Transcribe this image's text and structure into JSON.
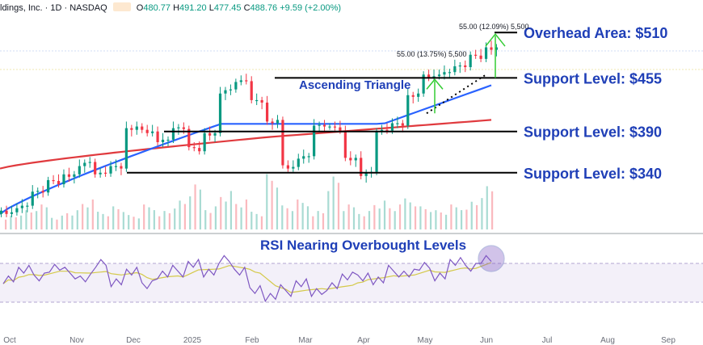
{
  "header": {
    "ticker": "ldings, Inc. · 1D · NASDAQ",
    "o_label": "O",
    "o": "480.77",
    "h_label": "H",
    "h": "491.20",
    "l_label": "L",
    "l": "477.45",
    "c_label": "C",
    "c": "488.76",
    "change": "+9.59 (+2.00%)"
  },
  "colors": {
    "up": "#089981",
    "down": "#f23645",
    "ma_fast": "#2962ff",
    "ma_slow": "#e03a3e",
    "annotation": "#1f3fb7",
    "rsi": "#7e57c2",
    "rsi_ma": "#d4c94a",
    "arrow": "#33cc33"
  },
  "chart_data": [
    {
      "type": "candlestick",
      "x_axis_labels": [
        "Oct",
        "Nov",
        "Dec",
        "2025",
        "Feb",
        "Mar",
        "Apr",
        "May",
        "Jun",
        "Jul",
        "Aug",
        "Sep"
      ],
      "y_range_estimate": [
        280,
        520
      ],
      "candles_approx_close": [
        290,
        300,
        318,
        330,
        335,
        352,
        340,
        348,
        392,
        388,
        380,
        395,
        370,
        385,
        440,
        452,
        428,
        400,
        345,
        360,
        398,
        395,
        355,
        340,
        392,
        400,
        432,
        455,
        462,
        470,
        482,
        489
      ],
      "moving_averages": [
        {
          "color": "#2962ff",
          "start": 290,
          "end": 446
        },
        {
          "color": "#e03a3e",
          "start": 345,
          "end": 404
        }
      ],
      "horizontal_levels": [
        {
          "label": "Overhead Area: $510",
          "value": 510
        },
        {
          "label": "Support Level: $455",
          "value": 455
        },
        {
          "label": "Support Level: $390",
          "value": 390
        },
        {
          "label": "Support Level: $340",
          "value": 340
        }
      ],
      "annotations": [
        {
          "text": "Ascending Triangle"
        },
        {
          "text": "55.00 (13.75%) 5,500"
        },
        {
          "text": "55.00 (12.09%) 5,500"
        }
      ],
      "volume_approx": [
        3,
        4,
        5,
        3,
        4,
        6,
        4,
        5,
        3,
        5,
        4,
        6,
        9,
        5,
        8,
        6,
        4,
        12,
        5,
        6,
        4,
        11,
        5,
        4,
        6,
        5,
        7,
        5,
        4,
        5,
        6,
        9
      ]
    },
    {
      "type": "line",
      "title": "RSI Nearing Overbought Levels",
      "y_range": [
        0,
        100
      ],
      "reference_lines": [
        70,
        30
      ],
      "rsi_values_approx": [
        55,
        62,
        58,
        65,
        60,
        55,
        68,
        52,
        60,
        50,
        58,
        62,
        70,
        58,
        76,
        60,
        45,
        35,
        42,
        50,
        38,
        48,
        55,
        58,
        52,
        62,
        60,
        65,
        58,
        70,
        68,
        74
      ]
    }
  ]
}
